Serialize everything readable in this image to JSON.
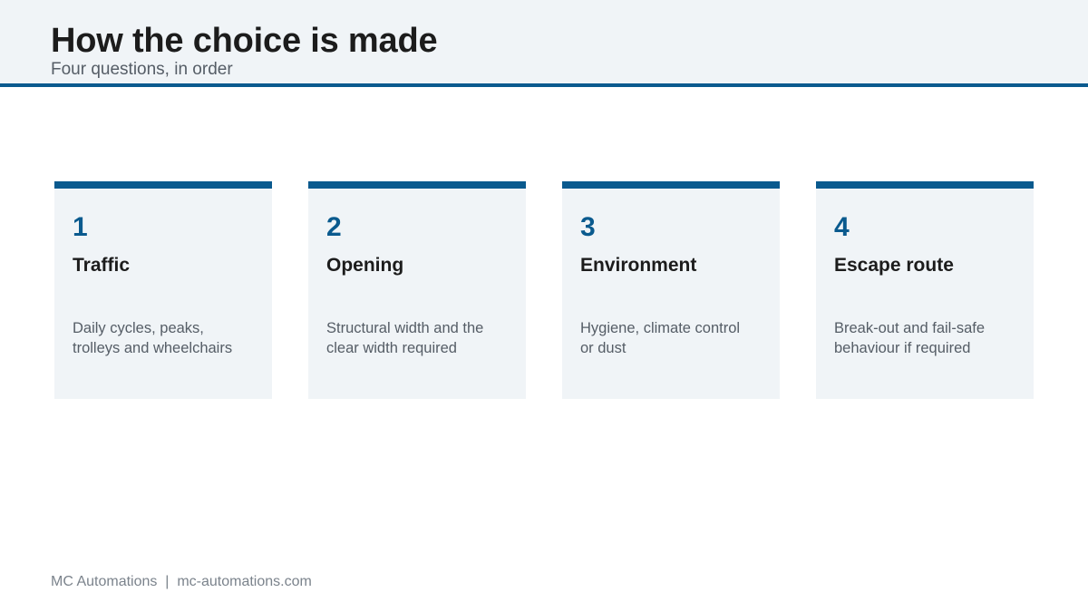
{
  "header": {
    "title": "How the choice is made",
    "subtitle": "Four questions, in order"
  },
  "cards": [
    {
      "number": "1",
      "title": "Traffic",
      "desc_line1": "Daily cycles, peaks,",
      "desc_line2": "trolleys and wheelchairs"
    },
    {
      "number": "2",
      "title": "Opening",
      "desc_line1": "Structural width and the",
      "desc_line2": "clear width required"
    },
    {
      "number": "3",
      "title": "Environment",
      "desc_line1": "Hygiene, climate control",
      "desc_line2": "or dust"
    },
    {
      "number": "4",
      "title": "Escape route",
      "desc_line1": "Break-out and fail-safe",
      "desc_line2": "behaviour if required"
    }
  ],
  "footer": {
    "text": "MC Automations  |  mc-automations.com"
  },
  "colors": {
    "accent": "#0a5a8e",
    "panel": "#f0f4f7",
    "heading": "#1c1c1c",
    "muted": "#555d66"
  }
}
